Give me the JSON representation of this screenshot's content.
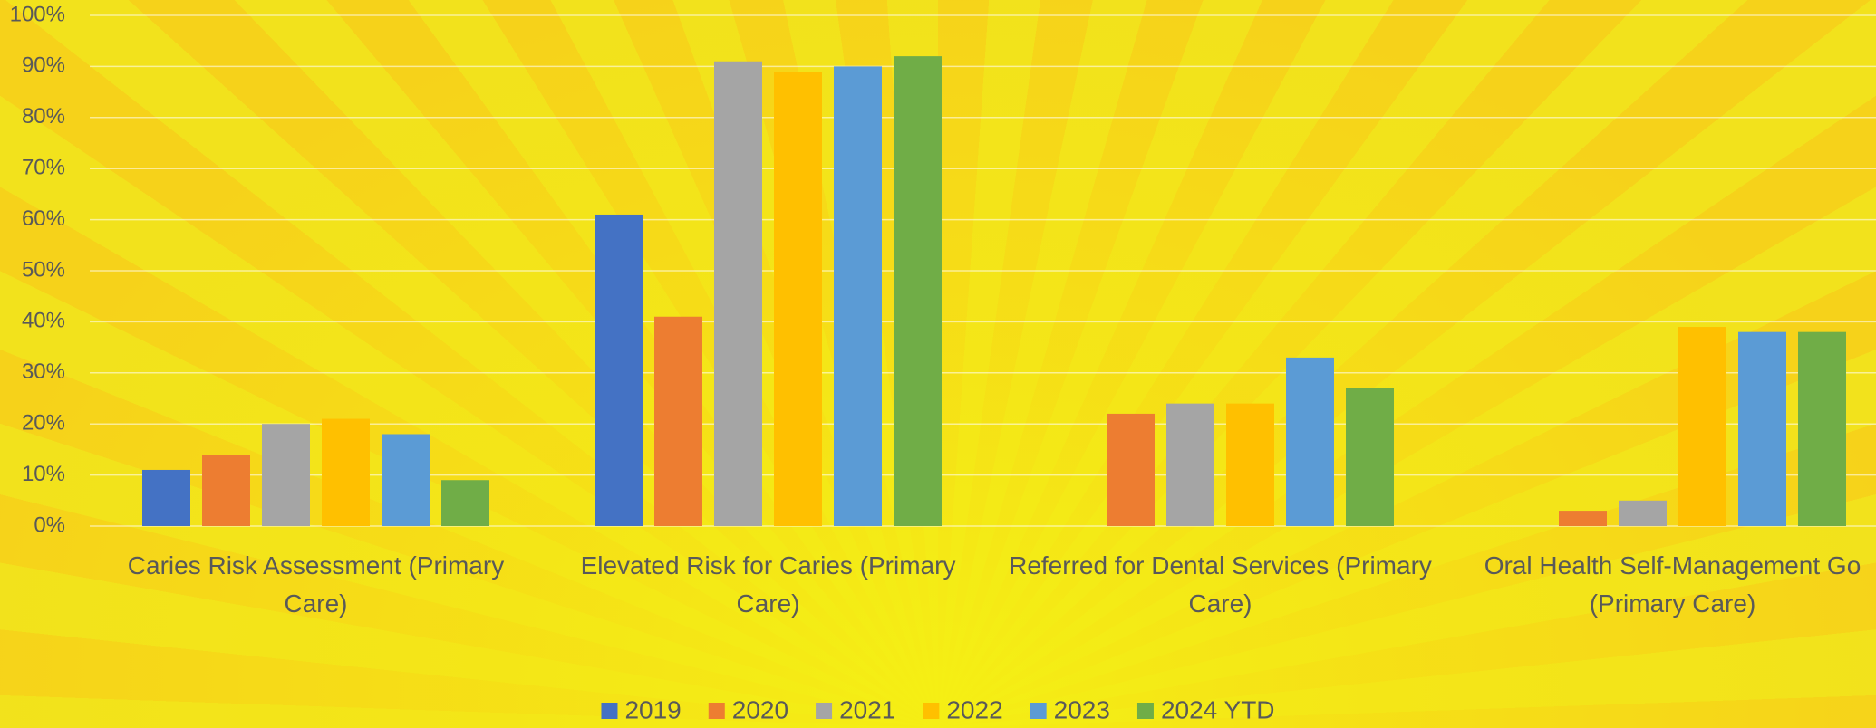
{
  "chart_data": {
    "type": "bar",
    "categories": [
      "Caries Risk Assessment (Primary Care)",
      "Elevated Risk for Caries (Primary Care)",
      "Referred for Dental Services (Primary Care)",
      "Oral Health Self-Management Go (Primary Care)"
    ],
    "series": [
      {
        "name": "2019",
        "color": "#4472c4",
        "values": [
          11,
          61,
          null,
          null
        ]
      },
      {
        "name": "2020",
        "color": "#ed7d31",
        "values": [
          14,
          41,
          22,
          3
        ]
      },
      {
        "name": "2021",
        "color": "#a5a5a5",
        "values": [
          20,
          91,
          24,
          5
        ]
      },
      {
        "name": "2022",
        "color": "#ffc000",
        "values": [
          21,
          89,
          24,
          39
        ]
      },
      {
        "name": "2023",
        "color": "#5b9bd5",
        "values": [
          18,
          90,
          33,
          38
        ]
      },
      {
        "name": "2024 YTD",
        "color": "#70ad47",
        "values": [
          9,
          92,
          27,
          38
        ]
      }
    ],
    "ylim": [
      0,
      100
    ],
    "yticks": [
      {
        "value": 0,
        "label": "0%"
      },
      {
        "value": 10,
        "label": "10%"
      },
      {
        "value": 20,
        "label": "20%"
      },
      {
        "value": 30,
        "label": "30%"
      },
      {
        "value": 40,
        "label": "40%"
      },
      {
        "value": 50,
        "label": "50%"
      },
      {
        "value": 60,
        "label": "60%"
      },
      {
        "value": 70,
        "label": "70%"
      },
      {
        "value": 80,
        "label": "80%"
      },
      {
        "value": 90,
        "label": "90%"
      },
      {
        "value": 100,
        "label": "100%"
      }
    ],
    "grid": true,
    "legend": "bottom"
  }
}
